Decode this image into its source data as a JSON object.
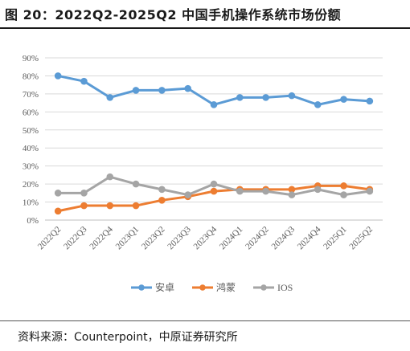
{
  "header": {
    "title": "图 20：2022Q2-2025Q2 中国手机操作系统市场份额"
  },
  "footer": {
    "source": "资料来源：Counterpoint，中原证券研究所"
  },
  "colors": {
    "安卓": "#5b9bd5",
    "鸿蒙": "#ed7d31",
    "IOS": "#a5a5a5",
    "grid": "#d9d9d9",
    "axis": "#bfbfbf",
    "label": "#595959"
  },
  "chart_data": {
    "type": "line",
    "title": "",
    "xlabel": "",
    "ylabel": "",
    "categories": [
      "2022Q2",
      "2022Q3",
      "2022Q4",
      "2023Q1",
      "2023Q2",
      "2023Q3",
      "2023Q4",
      "2024Q1",
      "2024Q2",
      "2024Q3",
      "2024Q4",
      "2025Q1",
      "2025Q2"
    ],
    "y_ticks": [
      "0%",
      "10%",
      "20%",
      "30%",
      "40%",
      "50%",
      "60%",
      "70%",
      "80%",
      "90%"
    ],
    "ylim": [
      0,
      90
    ],
    "grid": true,
    "legend": "bottom",
    "series": [
      {
        "name": "安卓",
        "values": [
          80,
          77,
          68,
          72,
          72,
          73,
          64,
          68,
          68,
          69,
          64,
          67,
          66
        ]
      },
      {
        "name": "鸿蒙",
        "values": [
          5,
          8,
          8,
          8,
          11,
          13,
          16,
          17,
          17,
          17,
          19,
          19,
          17
        ]
      },
      {
        "name": "IOS",
        "values": [
          15,
          15,
          24,
          20,
          17,
          14,
          20,
          16,
          16,
          14,
          17,
          14,
          16
        ]
      }
    ]
  }
}
